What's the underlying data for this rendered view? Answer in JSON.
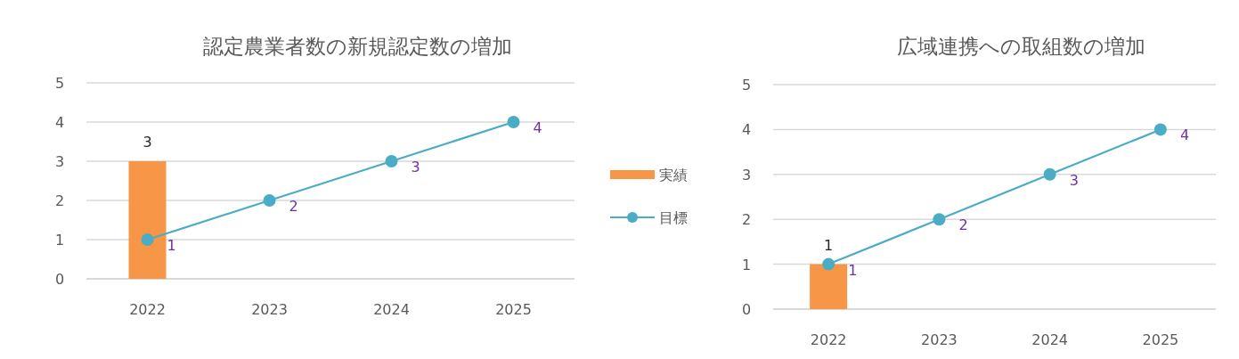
{
  "chart_data": [
    {
      "type": "bar",
      "title": "認定農業者数の新規認定数の増加",
      "categories": [
        "2022",
        "2023",
        "2024",
        "2025"
      ],
      "series": [
        {
          "name": "実績",
          "color": "#f79646",
          "values": [
            3,
            null,
            null,
            null
          ]
        },
        {
          "name": "目標",
          "type": "line",
          "color": "#4bacc6",
          "values": [
            1,
            2,
            3,
            4
          ]
        }
      ],
      "ylim": [
        0,
        5
      ],
      "yticks": [
        0,
        1,
        2,
        3,
        4,
        5
      ],
      "grid": "y",
      "legend": "right",
      "marker": "circle",
      "line_style": "solid",
      "data_labels": true
    },
    {
      "type": "bar",
      "title": "広域連携への取組数の増加",
      "categories": [
        "2022",
        "2023",
        "2024",
        "2025"
      ],
      "series": [
        {
          "color": "#f79646",
          "values": [
            1,
            null,
            null,
            null
          ]
        },
        {
          "type": "line",
          "color": "#4bacc6",
          "values": [
            1,
            2,
            3,
            4
          ]
        }
      ],
      "ylim": [
        0,
        5
      ],
      "yticks": [
        0,
        1,
        2,
        3,
        4,
        5
      ],
      "grid": "y",
      "legend": false,
      "marker": "circle",
      "line_style": "solid",
      "data_labels": true
    }
  ]
}
